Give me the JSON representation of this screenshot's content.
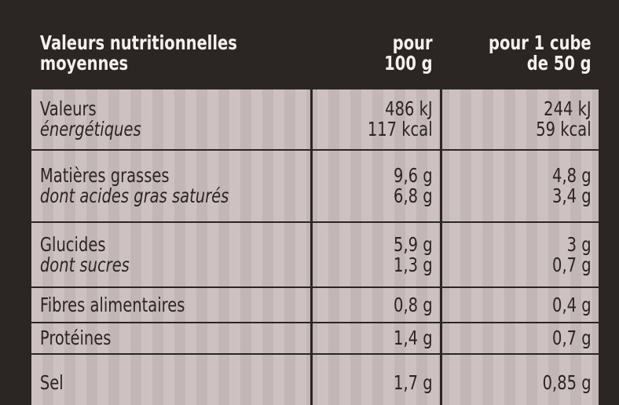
{
  "table": {
    "header": [
      [
        "Valeurs nutritionnelles",
        "moyennes"
      ],
      [
        "pour",
        "100 g"
      ],
      [
        "pour 1 cube",
        "de 50 g"
      ]
    ],
    "rows": [
      [
        [
          "Valeurs",
          "énergétiques"
        ],
        [
          "486 kJ",
          "117 kcal"
        ],
        [
          "244 kJ",
          "59 kcal"
        ]
      ],
      [
        [
          "Matières grasses",
          "dont acides gras saturés"
        ],
        [
          "9,6 g",
          "6,8 g"
        ],
        [
          "4,8 g",
          "3,4 g"
        ]
      ],
      [
        [
          "Glucides",
          "dont sucres"
        ],
        [
          "5,9 g",
          "1,3 g"
        ],
        [
          "3 g",
          "0,7 g"
        ]
      ],
      [
        [
          "Fibres alimentaires"
        ],
        [
          "0,8 g"
        ],
        [
          "0,4 g"
        ]
      ],
      [
        [
          "Protéines"
        ],
        [
          "1,4 g"
        ],
        [
          "0,7 g"
        ]
      ],
      [
        [
          "Sel"
        ],
        [
          "1,7 g"
        ],
        [
          "0,85 g"
        ]
      ]
    ]
  }
}
